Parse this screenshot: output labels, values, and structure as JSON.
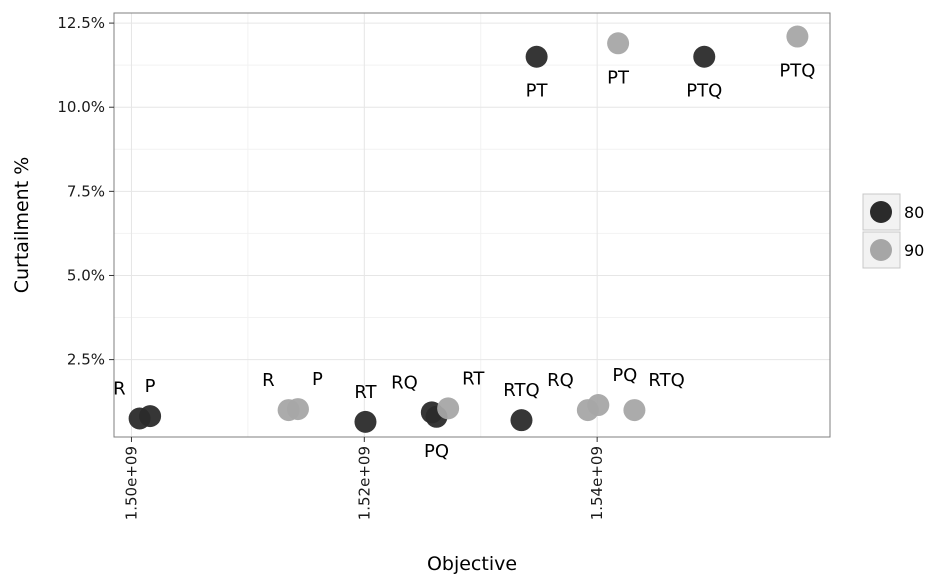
{
  "chart_data": {
    "type": "scatter",
    "xlabel": "Objective",
    "ylabel": "Curtailment %",
    "xlim": [
      1498500000.0,
      1560000000.0
    ],
    "ylim": [
      0.002,
      0.128
    ],
    "x_ticks": [
      {
        "value": 1500000000.0,
        "label": "1.50e+09"
      },
      {
        "value": 1520000000.0,
        "label": "1.52e+09"
      },
      {
        "value": 1540000000.0,
        "label": "1.54e+09"
      }
    ],
    "y_ticks": [
      {
        "value": 0.025,
        "label": "2.5%"
      },
      {
        "value": 0.05,
        "label": "5.0%"
      },
      {
        "value": 0.075,
        "label": "7.5%"
      },
      {
        "value": 0.1,
        "label": "10.0%"
      },
      {
        "value": 0.125,
        "label": "12.5%"
      }
    ],
    "grid": true,
    "legend_position": "right",
    "series": [
      {
        "name": "80",
        "color": "#2b2b2b",
        "points": [
          {
            "x": 1500700000.0,
            "y": 0.0075,
            "label": "R",
            "label_pos": "above-left"
          },
          {
            "x": 1501600000.0,
            "y": 0.0082,
            "label": "P",
            "label_pos": "above"
          },
          {
            "x": 1520100000.0,
            "y": 0.0065,
            "label": "RT",
            "label_pos": "above"
          },
          {
            "x": 1525800000.0,
            "y": 0.0093,
            "label": "RQ",
            "label_pos": "above-left"
          },
          {
            "x": 1526200000.0,
            "y": 0.008,
            "label": "PQ",
            "label_pos": "below"
          },
          {
            "x": 1533500000.0,
            "y": 0.007,
            "label": "RTQ",
            "label_pos": "above"
          },
          {
            "x": 1534800000.0,
            "y": 0.115,
            "label": "PT",
            "label_pos": "below"
          },
          {
            "x": 1549200000.0,
            "y": 0.115,
            "label": "PTQ",
            "label_pos": "below"
          }
        ]
      },
      {
        "name": "90",
        "color": "#a6a6a6",
        "points": [
          {
            "x": 1513500000.0,
            "y": 0.01,
            "label": "R",
            "label_pos": "above-left"
          },
          {
            "x": 1514300000.0,
            "y": 0.0103,
            "label": "P",
            "label_pos": "above-right"
          },
          {
            "x": 1527200000.0,
            "y": 0.0105,
            "label": "RT",
            "label_pos": "above-right"
          },
          {
            "x": 1539200000.0,
            "y": 0.01,
            "label": "RQ",
            "label_pos": "above-left"
          },
          {
            "x": 1540100000.0,
            "y": 0.0115,
            "label": "PQ",
            "label_pos": "above-right"
          },
          {
            "x": 1543200000.0,
            "y": 0.01,
            "label": "RTQ",
            "label_pos": "above-right"
          },
          {
            "x": 1541800000.0,
            "y": 0.119,
            "label": "PT",
            "label_pos": "below"
          },
          {
            "x": 1557200000.0,
            "y": 0.121,
            "label": "PTQ",
            "label_pos": "below"
          }
        ]
      }
    ]
  },
  "legend_items": [
    {
      "label": "80",
      "color": "#2b2b2b"
    },
    {
      "label": "90",
      "color": "#a6a6a6"
    }
  ]
}
